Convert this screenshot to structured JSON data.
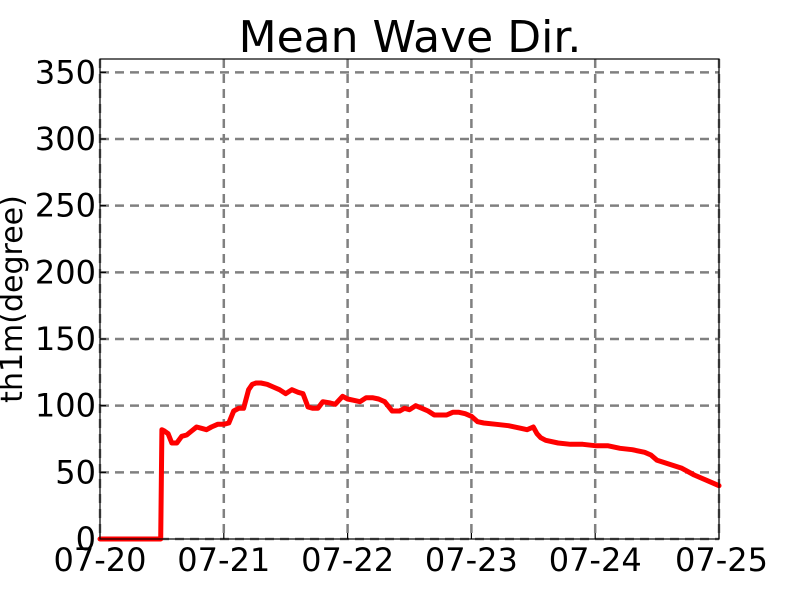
{
  "chart_data": {
    "type": "line",
    "title": "Mean Wave Dir.",
    "ylabel": "th1m(degree)",
    "xlabel": "",
    "ylim": [
      0,
      360
    ],
    "yticks": [
      0,
      50,
      100,
      150,
      200,
      250,
      300,
      350
    ],
    "x_ticks": [
      "07-20",
      "07-21",
      "07-22",
      "07-23",
      "07-24",
      "07-25"
    ],
    "x_range_days": [
      0,
      5
    ],
    "grid": true,
    "line_color": "#ff0000",
    "series": [
      {
        "x": [
          0.0,
          0.48,
          0.49,
          0.5,
          0.52,
          0.55,
          0.58,
          0.62,
          0.66,
          0.7,
          0.74,
          0.78,
          0.82,
          0.86,
          0.9,
          0.95,
          1.0,
          1.04,
          1.08,
          1.12,
          1.16,
          1.2,
          1.23,
          1.26,
          1.3,
          1.35,
          1.4,
          1.45,
          1.5,
          1.55,
          1.6,
          1.64,
          1.68,
          1.72,
          1.76,
          1.8,
          1.86,
          1.9,
          1.96,
          2.0,
          2.05,
          2.1,
          2.15,
          2.2,
          2.25,
          2.3,
          2.36,
          2.42,
          2.46,
          2.5,
          2.55,
          2.6,
          2.65,
          2.7,
          2.75,
          2.8,
          2.85,
          2.9,
          2.95,
          3.0,
          3.05,
          3.1,
          3.2,
          3.3,
          3.4,
          3.45,
          3.5,
          3.53,
          3.56,
          3.6,
          3.7,
          3.8,
          3.9,
          4.0,
          4.05,
          4.1,
          4.2,
          4.3,
          4.4,
          4.45,
          4.5,
          4.6,
          4.7,
          4.8,
          4.9,
          5.0
        ],
        "y": [
          0,
          0,
          0,
          82,
          81,
          79,
          72,
          72,
          77,
          78,
          81,
          84,
          83,
          82,
          84,
          86,
          86,
          87,
          96,
          98,
          98,
          112,
          116,
          117,
          117,
          116,
          114,
          112,
          109,
          112,
          110,
          109,
          99,
          98,
          98,
          103,
          102,
          101,
          107,
          105,
          104,
          103,
          106,
          106,
          105,
          103,
          96,
          96,
          98,
          97,
          100,
          98,
          96,
          93,
          93,
          93,
          95,
          95,
          94,
          92,
          88,
          87,
          86,
          85,
          83,
          82,
          84,
          79,
          76,
          74,
          72,
          71,
          71,
          70,
          70,
          70,
          68,
          67,
          65,
          63,
          59,
          56,
          53,
          48,
          44,
          40
        ]
      }
    ]
  }
}
